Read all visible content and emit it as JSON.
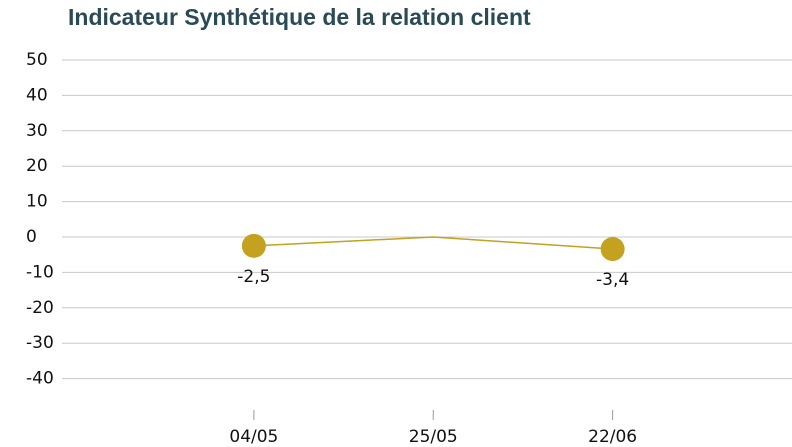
{
  "chart_data": {
    "type": "line",
    "title": "Indicateur Synthétique de la relation client",
    "categories": [
      "04/05",
      "25/05",
      "22/06"
    ],
    "values": [
      -2.5,
      0,
      -3.4
    ],
    "value_labels": [
      "-2,5",
      null,
      "-3,4"
    ],
    "color": "#c4a11e",
    "ylim": [
      -50,
      50
    ],
    "yticks": [
      50,
      40,
      30,
      20,
      10,
      0,
      -10,
      -20,
      -30,
      -40
    ],
    "grid": true
  }
}
